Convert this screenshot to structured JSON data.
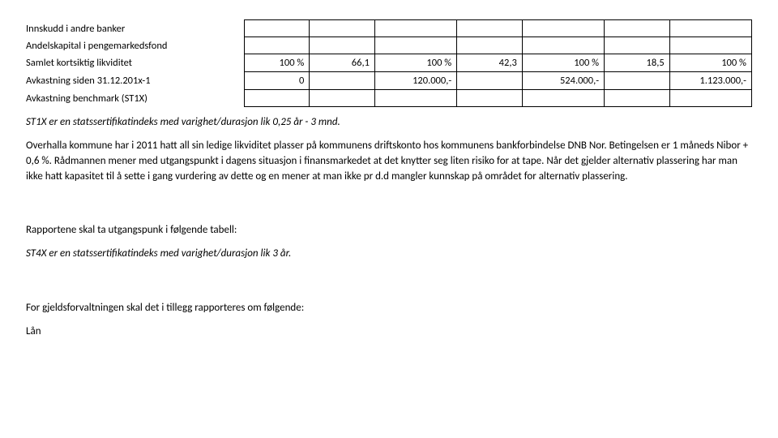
{
  "table": {
    "rows": [
      {
        "label": "Innskudd i andre banker",
        "cells": [
          "",
          "",
          "",
          "",
          "",
          "",
          ""
        ]
      },
      {
        "label": "Andelskapital i pengemarkedsfond",
        "cells": [
          "",
          "",
          "",
          "",
          "",
          "",
          ""
        ],
        "spacer": true
      },
      {
        "label": "Samlet kortsiktig likviditet",
        "cells": [
          "100 %",
          "66,1",
          "100 %",
          "42,3",
          "100 %",
          "18,5",
          "100 %"
        ]
      },
      {
        "label": "Avkastning siden 31.12.201x-1",
        "cells": [
          "0",
          "",
          "120.000,-",
          "",
          "524.000,-",
          "",
          "1.123.000,-"
        ]
      },
      {
        "label": "Avkastning benchmark (ST1X)",
        "cells": [
          "",
          "",
          "",
          "",
          "",
          "",
          ""
        ]
      }
    ]
  },
  "note1": "ST1X er en statssertifikatindeks med varighet/durasjon lik 0,25 år - 3 mnd.",
  "para1": "Overhalla kommune har i 2011 hatt all sin ledige likviditet plasser på kommunens driftskonto hos kommunens bankforbindelse DNB Nor. Betingelsen er 1 måneds Nibor + 0,6 %. Rådmannen mener med utgangspunkt i dagens situasjon i finansmarkedet at det knytter seg liten risiko for at tape. Når det gjelder alternativ plassering har man ikke hatt kapasitet til å sette i gang vurdering av dette og en mener at man ikke pr d.d mangler kunnskap på området for alternativ plassering.",
  "para2": "Rapportene skal ta utgangspunk i følgende tabell:",
  "note2": "ST4X er en statssertifikatindeks med varighet/durasjon lik 3 år.",
  "para3": "For gjeldsforvaltningen skal det i tillegg rapporteres om følgende:",
  "para4": "Lån"
}
